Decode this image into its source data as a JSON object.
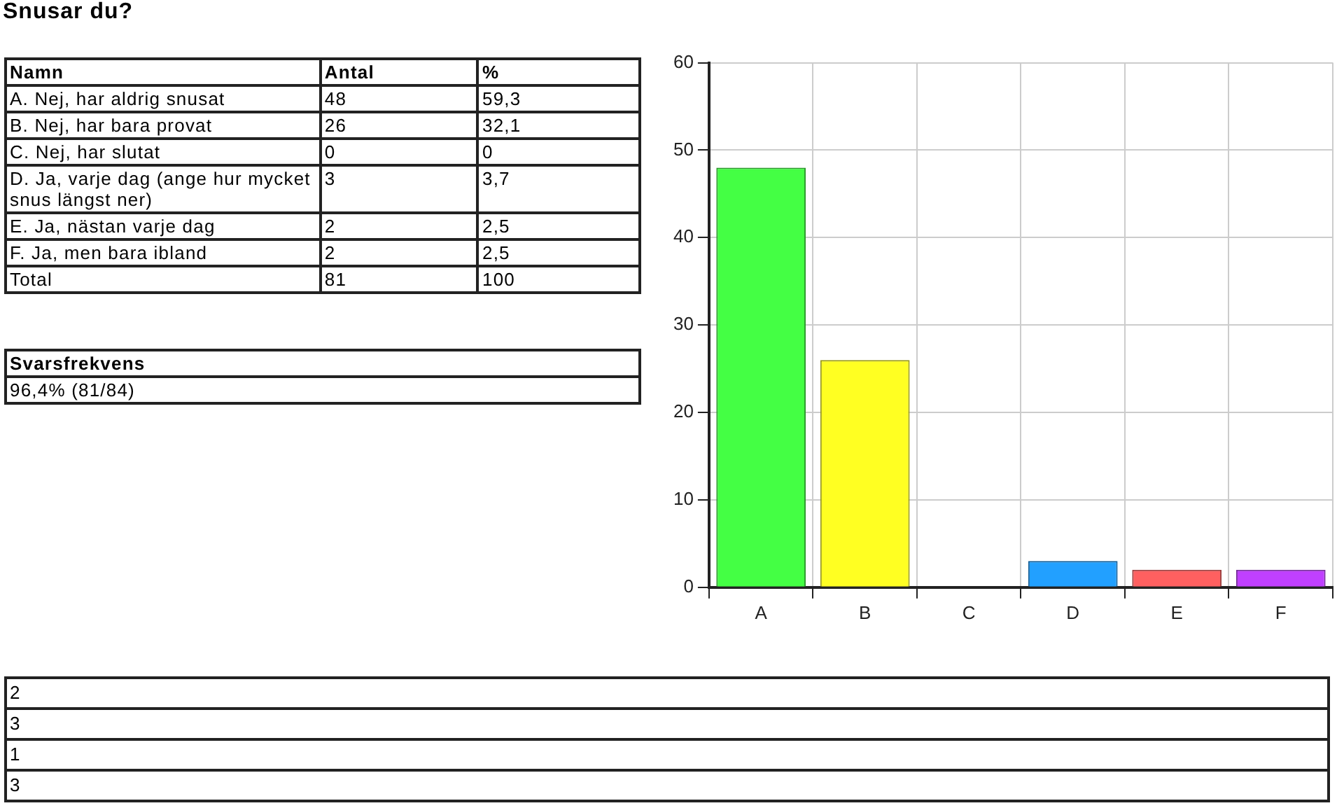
{
  "chart_data": [
    {
      "type": "other",
      "title": "Snusar du?",
      "annotations": [
        "Namn\tAntal\t%",
        "A. Nej, har aldrig snusat\t48\t59,3",
        "B. Nej, har bara provat\t26\t32,1",
        "C. Nej, har slutat\t0\t0",
        "D. Ja, varje dag (ange hur mycket snus längst ner)\t3\t3,7",
        "E. Ja, nästan varje dag\t2\t2,5",
        "F. Ja, men bara ibland\t2\t2,5",
        "Total\t81\t100"
      ]
    },
    {
      "type": "other",
      "annotations": [
        "Svarsfrekvens",
        "96,4% (81/84)"
      ]
    },
    {
      "type": "bar",
      "categories": [
        "A",
        "B",
        "C",
        "D",
        "E",
        "F"
      ],
      "values": [
        48,
        26,
        0,
        3,
        2,
        2
      ],
      "colors": [
        "#44ff44",
        "#ffff22",
        "#999999",
        "#22a0ff",
        "#ff6060",
        "#c040ff"
      ],
      "ylim": [
        0,
        60
      ],
      "yticks": [
        0,
        10,
        20,
        30,
        40,
        50,
        60
      ],
      "grid": true,
      "legend": false
    },
    {
      "type": "other",
      "annotations": [
        "2",
        "3",
        "1",
        "3"
      ]
    }
  ]
}
